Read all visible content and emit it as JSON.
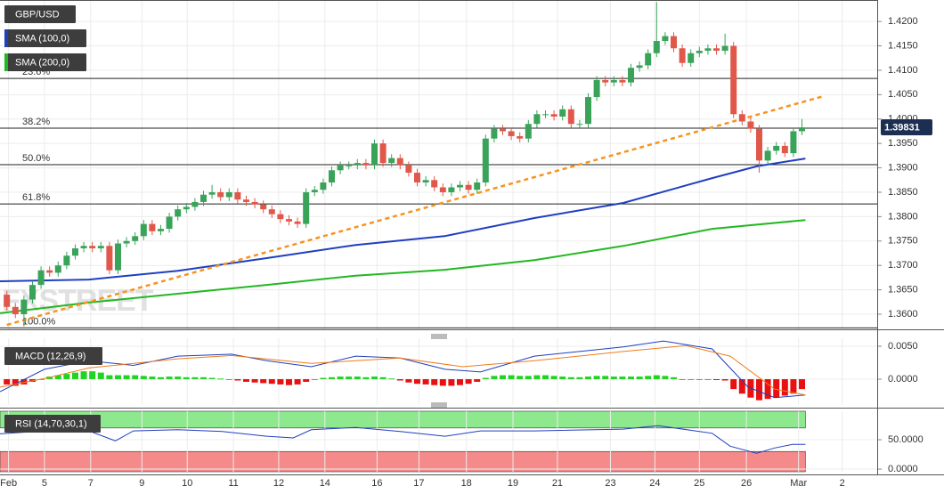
{
  "chart_data": [
    {
      "type": "candlestick",
      "title": "GBP/USD",
      "watermark": "FXSTREET",
      "up_color": "#3aa35a",
      "down_color": "#e0584a",
      "open": [
        1.364,
        1.3615,
        1.36,
        1.363,
        1.366,
        1.369,
        1.3685,
        1.37,
        1.372,
        1.3735,
        1.374,
        1.3735,
        1.374,
        1.369,
        1.3745,
        1.375,
        1.376,
        1.3785,
        1.377,
        1.3775,
        1.38,
        1.3815,
        1.382,
        1.383,
        1.3845,
        1.385,
        1.384,
        1.385,
        1.3835,
        1.383,
        1.3825,
        1.3815,
        1.3805,
        1.3795,
        1.379,
        1.3785,
        1.385,
        1.3855,
        1.387,
        1.3895,
        1.3905,
        1.3905,
        1.391,
        1.3905,
        1.395,
        1.391,
        1.392,
        1.3905,
        1.389,
        1.387,
        1.3875,
        1.386,
        1.385,
        1.386,
        1.3865,
        1.3855,
        1.387,
        1.396,
        1.398,
        1.3975,
        1.3965,
        1.396,
        1.399,
        1.401,
        1.401,
        1.4005,
        1.402,
        1.399,
        1.399,
        1.4045,
        1.408,
        1.4075,
        1.408,
        1.4075,
        1.4105,
        1.411,
        1.4135,
        1.416,
        1.417,
        1.4145,
        1.4115,
        1.4135,
        1.414,
        1.4145,
        1.414,
        1.415,
        1.401,
        1.3995,
        1.398,
        1.3915,
        1.3935,
        1.3945,
        1.393,
        1.3975
      ],
      "high": [
        1.3648,
        1.3623,
        1.3638,
        1.3668,
        1.3698,
        1.3698,
        1.3708,
        1.3728,
        1.3743,
        1.3748,
        1.3748,
        1.3748,
        1.3748,
        1.3753,
        1.3758,
        1.3768,
        1.3793,
        1.3793,
        1.3783,
        1.3808,
        1.3823,
        1.3828,
        1.3838,
        1.3853,
        1.3865,
        1.3858,
        1.3858,
        1.3858,
        1.3843,
        1.3838,
        1.3833,
        1.3823,
        1.3813,
        1.3803,
        1.3798,
        1.3858,
        1.3863,
        1.3878,
        1.3903,
        1.3913,
        1.3913,
        1.3918,
        1.3918,
        1.3958,
        1.3958,
        1.3928,
        1.3928,
        1.3913,
        1.3898,
        1.3883,
        1.3883,
        1.3868,
        1.3868,
        1.3873,
        1.3873,
        1.3878,
        1.3968,
        1.3988,
        1.3988,
        1.3983,
        1.3973,
        1.3998,
        1.4018,
        1.4018,
        1.4018,
        1.4028,
        1.4028,
        1.3998,
        1.4053,
        1.4088,
        1.4088,
        1.4088,
        1.4088,
        1.4113,
        1.4118,
        1.4143,
        1.424,
        1.4178,
        1.4178,
        1.4153,
        1.4143,
        1.4148,
        1.4153,
        1.4153,
        1.4175,
        1.4158,
        1.4018,
        1.4003,
        1.3988,
        1.3943,
        1.3953,
        1.3953,
        1.3983,
        1.4
      ],
      "low": [
        1.3607,
        1.3592,
        1.3575,
        1.3622,
        1.3652,
        1.3677,
        1.3677,
        1.3692,
        1.3712,
        1.3727,
        1.3727,
        1.3727,
        1.3682,
        1.3682,
        1.3737,
        1.3742,
        1.3752,
        1.3762,
        1.3762,
        1.3767,
        1.3792,
        1.3807,
        1.3812,
        1.3822,
        1.3837,
        1.3832,
        1.3832,
        1.3827,
        1.3822,
        1.3817,
        1.3807,
        1.3797,
        1.3787,
        1.3782,
        1.3777,
        1.3777,
        1.3842,
        1.3847,
        1.3862,
        1.3887,
        1.3897,
        1.3897,
        1.3897,
        1.3897,
        1.3902,
        1.3902,
        1.3897,
        1.3882,
        1.3862,
        1.3862,
        1.3852,
        1.3842,
        1.3842,
        1.3852,
        1.3847,
        1.3847,
        1.3862,
        1.3952,
        1.3967,
        1.3957,
        1.3952,
        1.3952,
        1.3982,
        1.4002,
        1.3997,
        1.3997,
        1.3982,
        1.3982,
        1.3982,
        1.4037,
        1.4067,
        1.4067,
        1.4067,
        1.4067,
        1.4097,
        1.4102,
        1.4127,
        1.4152,
        1.4137,
        1.4107,
        1.4107,
        1.4127,
        1.4132,
        1.4132,
        1.4132,
        1.4002,
        1.3987,
        1.3972,
        1.389,
        1.3907,
        1.3927,
        1.3922,
        1.3922,
        1.3967
      ],
      "close": [
        1.3615,
        1.36,
        1.363,
        1.366,
        1.369,
        1.3685,
        1.37,
        1.372,
        1.3735,
        1.374,
        1.3735,
        1.374,
        1.369,
        1.3745,
        1.375,
        1.376,
        1.3785,
        1.377,
        1.3775,
        1.38,
        1.3815,
        1.382,
        1.383,
        1.3845,
        1.385,
        1.384,
        1.385,
        1.3835,
        1.383,
        1.3825,
        1.3815,
        1.3805,
        1.3795,
        1.379,
        1.3785,
        1.385,
        1.3855,
        1.387,
        1.3895,
        1.3905,
        1.3905,
        1.391,
        1.3905,
        1.395,
        1.391,
        1.392,
        1.3905,
        1.389,
        1.387,
        1.3875,
        1.386,
        1.385,
        1.386,
        1.3865,
        1.3855,
        1.387,
        1.396,
        1.398,
        1.3975,
        1.3965,
        1.396,
        1.399,
        1.401,
        1.401,
        1.4005,
        1.402,
        1.399,
        1.399,
        1.4045,
        1.408,
        1.4075,
        1.408,
        1.4075,
        1.4105,
        1.411,
        1.4135,
        1.416,
        1.417,
        1.4145,
        1.4115,
        1.4135,
        1.414,
        1.4145,
        1.414,
        1.415,
        1.401,
        1.3995,
        1.398,
        1.3915,
        1.3935,
        1.3945,
        1.393,
        1.3975,
        1.3983
      ],
      "xlim": [
        -0.8,
        101.8
      ],
      "xticks": [
        {
          "value": 0.2,
          "label": "Feb"
        },
        {
          "value": 4.4,
          "label": "5"
        },
        {
          "value": 9.8,
          "label": "7"
        },
        {
          "value": 15.8,
          "label": "9"
        },
        {
          "value": 21.1,
          "label": "10"
        },
        {
          "value": 26.5,
          "label": "11"
        },
        {
          "value": 31.8,
          "label": "12"
        },
        {
          "value": 37.2,
          "label": "14"
        },
        {
          "value": 43.3,
          "label": "16"
        },
        {
          "value": 48.2,
          "label": "17"
        },
        {
          "value": 53.75,
          "label": "18"
        },
        {
          "value": 59.2,
          "label": "19"
        },
        {
          "value": 64.4,
          "label": "21"
        },
        {
          "value": 70.6,
          "label": "23"
        },
        {
          "value": 75.8,
          "label": "24"
        },
        {
          "value": 81,
          "label": "25"
        },
        {
          "value": 86.5,
          "label": "26"
        },
        {
          "value": 92.6,
          "label": "Mar"
        },
        {
          "value": 97.7,
          "label": "2"
        }
      ],
      "ylim": [
        1.3569,
        1.4244
      ],
      "yticks": [
        {
          "value": 1.36,
          "label": "1.3600"
        },
        {
          "value": 1.365,
          "label": "1.3650"
        },
        {
          "value": 1.37,
          "label": "1.3700"
        },
        {
          "value": 1.375,
          "label": "1.3750"
        },
        {
          "value": 1.38,
          "label": "1.3800"
        },
        {
          "value": 1.385,
          "label": "1.3850"
        },
        {
          "value": 1.39,
          "label": "1.3900"
        },
        {
          "value": 1.395,
          "label": "1.3950"
        },
        {
          "value": 1.4,
          "label": "1.4000"
        },
        {
          "value": 1.405,
          "label": "1.4050"
        },
        {
          "value": 1.41,
          "label": "1.4100"
        },
        {
          "value": 1.415,
          "label": "1.4150"
        },
        {
          "value": 1.42,
          "label": "1.4200"
        }
      ],
      "grid": true,
      "series": [
        {
          "name": "SMA (100,0)",
          "color": "#1f3fbf",
          "x": [
            -0.8,
            9.6,
            20,
            30.4,
            40.8,
            51.2,
            61.7,
            72.1,
            82.5,
            87.7,
            93.4
          ],
          "values": [
            1.36675,
            1.3671,
            1.3689,
            1.3715,
            1.3742,
            1.376,
            1.3797,
            1.3828,
            1.3879,
            1.3903,
            1.3919
          ]
        },
        {
          "name": "SMA (200,0)",
          "color": "#22b822",
          "x": [
            -0.8,
            9.6,
            20,
            30.4,
            40.8,
            51.2,
            61.7,
            72.1,
            82.5,
            93.4
          ],
          "values": [
            1.3602,
            1.3624,
            1.3642,
            1.366,
            1.3679,
            1.3691,
            1.3711,
            1.374,
            1.3775,
            1.3793
          ]
        }
      ],
      "trendline": {
        "color": "#f7931e",
        "x": [
          0,
          95.5
        ],
        "values": [
          1.35781,
          1.40468
        ]
      },
      "fib_levels": [
        {
          "label": "23.6%",
          "value": 1.40833
        },
        {
          "label": "38.2%",
          "value": 1.39812
        },
        {
          "label": "50.0%",
          "value": 1.39064
        },
        {
          "label": "61.8%",
          "value": 1.38261
        },
        {
          "label": "100.0%",
          "value": 1.3572
        }
      ],
      "last_price": 1.39831
    },
    {
      "type": "macd",
      "title": "MACD (12,26,9)",
      "ylim": [
        -0.00392,
        0.00622
      ],
      "yticks": [
        {
          "value": 0.005,
          "label": "0.0050"
        },
        {
          "value": 0,
          "label": "0.0000"
        }
      ],
      "positive_color": "#22d422",
      "negative_color": "#e81010",
      "histogram": [
        -0.0008,
        -0.001,
        -0.0008,
        -0.0004,
        0.0,
        0.0004,
        0.0006,
        0.0008,
        0.001,
        0.0012,
        0.0012,
        0.001,
        0.0006,
        0.0006,
        0.0006,
        0.0006,
        0.0005,
        0.0004,
        0.0003,
        0.0004,
        0.0004,
        0.0003,
        0.0003,
        0.0003,
        0.0002,
        0.0001,
        0.0,
        -0.0002,
        -0.0004,
        -0.0005,
        -0.0006,
        -0.0007,
        -0.0008,
        -0.0009,
        -0.0008,
        -0.0004,
        0.0,
        0.0002,
        0.0003,
        0.0004,
        0.0004,
        0.0004,
        0.0003,
        0.0004,
        0.0003,
        0.0001,
        -0.0002,
        -0.0005,
        -0.0007,
        -0.0008,
        -0.0009,
        -0.001,
        -0.001,
        -0.0009,
        -0.0007,
        -0.0004,
        0.0002,
        0.0005,
        0.0006,
        0.0006,
        0.0005,
        0.0005,
        0.0006,
        0.0006,
        0.0005,
        0.0004,
        0.0003,
        0.0003,
        0.0004,
        0.0005,
        0.0005,
        0.0004,
        0.0004,
        0.0004,
        0.0004,
        0.0005,
        0.0006,
        0.0005,
        0.0003,
        0.0,
        0.0,
        0.0,
        0.0,
        -0.0001,
        -0.0002,
        -0.0015,
        -0.0022,
        -0.0028,
        -0.0032,
        -0.003,
        -0.0028,
        -0.0025,
        -0.0022,
        -0.0015
      ],
      "series": [
        {
          "color": "#1f3fbf",
          "x": [
            -0.8,
            4.4,
            9.6,
            14.8,
            20,
            26.25,
            30.4,
            35.6,
            40.8,
            46,
            51.25,
            55.4,
            61.7,
            72.1,
            76.8,
            82.5,
            86.7,
            89.8,
            93.4
          ],
          "values": [
            -0.0019,
            0.0015,
            0.0028,
            0.0021,
            0.0035,
            0.0038,
            0.0028,
            0.0019,
            0.0035,
            0.0032,
            0.0015,
            0.0011,
            0.0035,
            0.0049,
            0.0058,
            0.0046,
            -0.0012,
            -0.0028,
            -0.0024
          ]
        },
        {
          "color": "#f07c1a",
          "x": [
            -0.8,
            4.4,
            9.6,
            20,
            26.25,
            35.6,
            46,
            53.3,
            61.7,
            72.1,
            79.4,
            84.6,
            89.8,
            93.4
          ],
          "values": [
            -0.0012,
            0.0001,
            0.0017,
            0.0031,
            0.0036,
            0.0024,
            0.0032,
            0.0019,
            0.0028,
            0.0042,
            0.0051,
            0.0035,
            -0.0015,
            -0.0024
          ]
        }
      ]
    },
    {
      "type": "rsi",
      "title": "RSI (14,70,30,1)",
      "ylim": [
        -4.5,
        98.5
      ],
      "yticks": [
        {
          "value": 50,
          "label": "50.0000"
        },
        {
          "value": 0,
          "label": "0.0000"
        }
      ],
      "overbought": 70,
      "oversold": 30,
      "overbought_color": "#8ee88e",
      "oversold_color": "#f48a8a",
      "series": [
        {
          "color": "#1f3fbf",
          "x": [
            -0.8,
            4.4,
            9.6,
            12.7,
            14.8,
            20,
            25.2,
            30.4,
            33.5,
            35.6,
            40.8,
            46,
            51.25,
            55.4,
            61.7,
            72.1,
            76.2,
            82.5,
            84.6,
            87.7,
            89.8,
            91.9,
            93.4
          ],
          "values": [
            60,
            65,
            65,
            48,
            65,
            67,
            64,
            56,
            53,
            67,
            71,
            64,
            56,
            65,
            65,
            68,
            74,
            61,
            39,
            27,
            36,
            42,
            42
          ]
        }
      ]
    }
  ]
}
